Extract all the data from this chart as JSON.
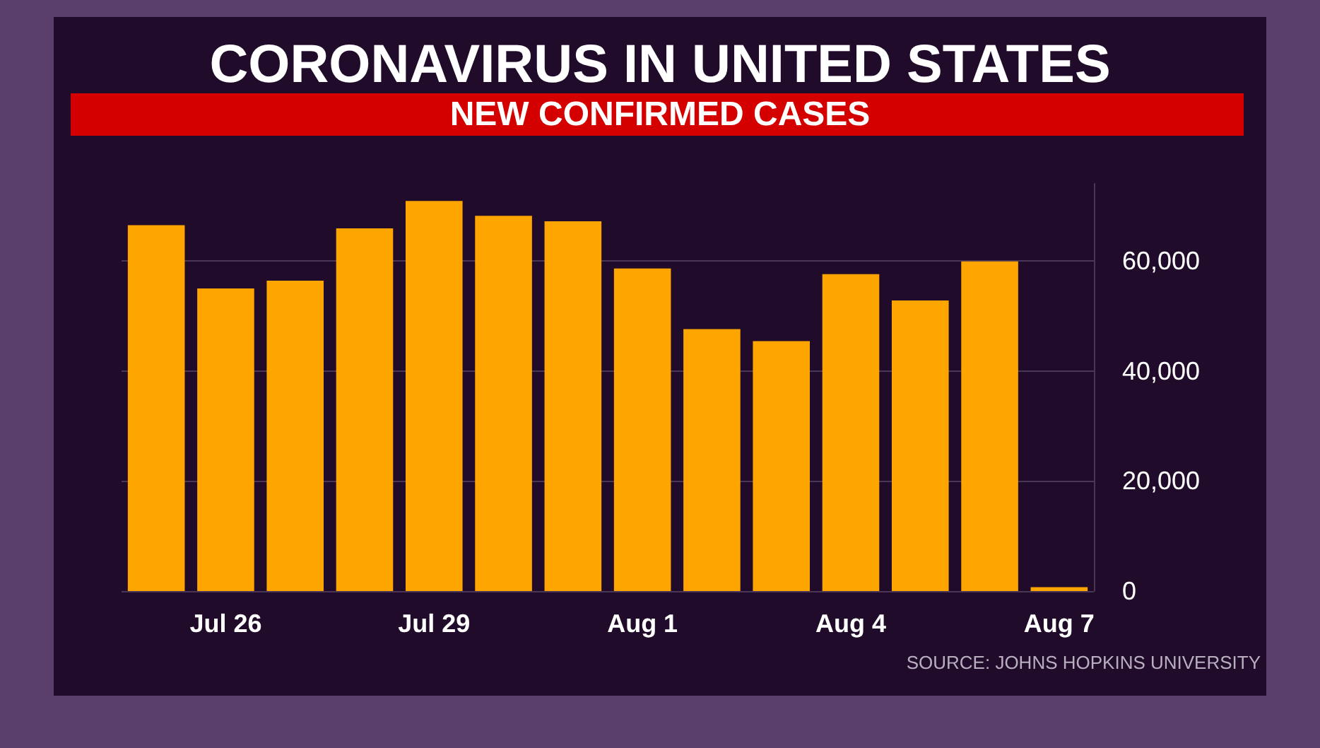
{
  "chart_data": {
    "type": "bar",
    "title": "CORONAVIRUS IN UNITED STATES",
    "subtitle": "NEW CONFIRMED CASES",
    "categories": [
      null,
      "Jul 26",
      null,
      null,
      "Jul 29",
      null,
      null,
      "Aug 1",
      null,
      null,
      "Aug 4",
      null,
      null,
      "Aug 7"
    ],
    "values": [
      66500,
      55000,
      56400,
      65900,
      70900,
      68200,
      67200,
      58600,
      47600,
      45400,
      57600,
      52800,
      59900,
      700
    ],
    "color": "#ffa500",
    "ylim": [
      0,
      74000
    ],
    "yticks": [
      {
        "value": 0,
        "label": "0"
      },
      {
        "value": 20000,
        "label": "20,000"
      },
      {
        "value": 40000,
        "label": "40,000"
      },
      {
        "value": 60000,
        "label": "60,000"
      }
    ],
    "grid": "y",
    "annotations": [
      "SOURCE: JOHNS HOPKINS UNIVERSITY"
    ]
  }
}
